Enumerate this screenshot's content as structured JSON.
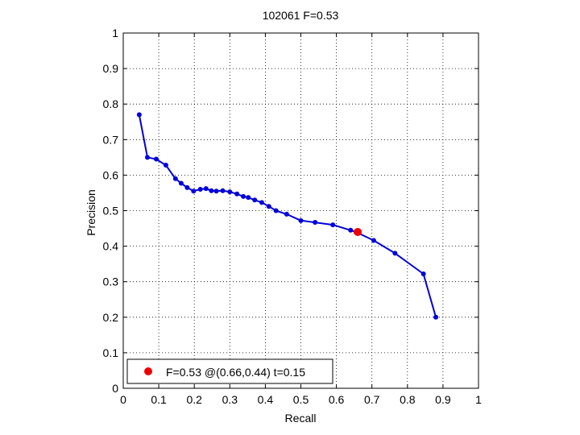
{
  "chart_data": {
    "type": "line",
    "title": "102061 F=0.53",
    "xlabel": "Recall",
    "ylabel": "Precision",
    "xlim": [
      0,
      1
    ],
    "ylim": [
      0,
      1
    ],
    "xticks": [
      "0",
      "0.1",
      "0.2",
      "0.3",
      "0.4",
      "0.5",
      "0.6",
      "0.7",
      "0.8",
      "0.9",
      "1"
    ],
    "yticks": [
      "0",
      "0.1",
      "0.2",
      "0.3",
      "0.4",
      "0.5",
      "0.6",
      "0.7",
      "0.8",
      "0.9",
      "1"
    ],
    "grid": true,
    "grid_style": "dotted",
    "series": [
      {
        "color": "#0000d8",
        "marker": "dot",
        "x": [
          0.045,
          0.068,
          0.093,
          0.12,
          0.147,
          0.163,
          0.18,
          0.198,
          0.217,
          0.233,
          0.248,
          0.262,
          0.28,
          0.3,
          0.32,
          0.338,
          0.352,
          0.37,
          0.39,
          0.41,
          0.43,
          0.46,
          0.5,
          0.54,
          0.59,
          0.64,
          0.655,
          0.705,
          0.765,
          0.845,
          0.88
        ],
        "y": [
          0.77,
          0.65,
          0.645,
          0.628,
          0.59,
          0.577,
          0.565,
          0.555,
          0.56,
          0.562,
          0.556,
          0.555,
          0.556,
          0.553,
          0.547,
          0.54,
          0.537,
          0.53,
          0.523,
          0.512,
          0.5,
          0.49,
          0.472,
          0.467,
          0.46,
          0.445,
          0.44,
          0.416,
          0.38,
          0.322,
          0.2
        ]
      }
    ],
    "highlight": {
      "x": 0.66,
      "y": 0.44,
      "color": "#ee0000",
      "label": "F=0.53 @(0.66,0.44) t=0.15"
    },
    "legend_placement": "bottom-left"
  }
}
